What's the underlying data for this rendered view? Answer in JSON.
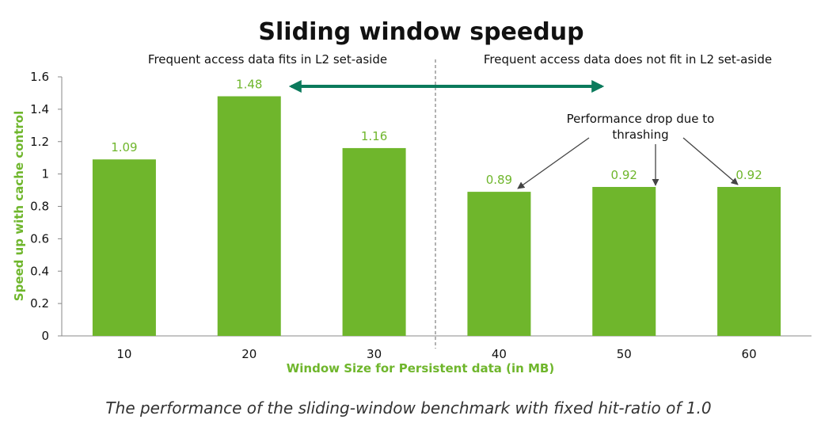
{
  "chart_data": {
    "type": "bar",
    "title": "Sliding window speedup",
    "categories": [
      "10",
      "20",
      "30",
      "40",
      "50",
      "60"
    ],
    "values": [
      1.09,
      1.48,
      1.16,
      0.89,
      0.92,
      0.92
    ],
    "data_labels": [
      "1.09",
      "1.48",
      "1.16",
      "0.89",
      "0.92",
      "0.92"
    ],
    "xlabel": "Window Size for Persistent data (in MB)",
    "ylabel": "Speed up with cache control",
    "ylim": [
      0,
      1.6
    ],
    "yticks": [
      "0",
      "0.2",
      "0.4",
      "0.6",
      "0.8",
      "1",
      "1.2",
      "1.4",
      "1.6"
    ],
    "grid": false,
    "region_labels": [
      "Frequent access data fits in L2 set-aside",
      "Frequent access data does not fit in L2 set-aside"
    ],
    "annotation": {
      "lines": [
        "Performance drop due to",
        "thrashing"
      ],
      "points_to": [
        "40",
        "50",
        "60"
      ]
    },
    "caption": "The performance of the sliding-window benchmark with fixed hit-ratio of 1.0",
    "colors": {
      "bar": "#6fb62c",
      "axis_title": "#6fb62c",
      "data_label": "#6fb62c",
      "double_arrow": "#0b7a5c",
      "axis": "#888888",
      "divider": "#666666"
    }
  }
}
